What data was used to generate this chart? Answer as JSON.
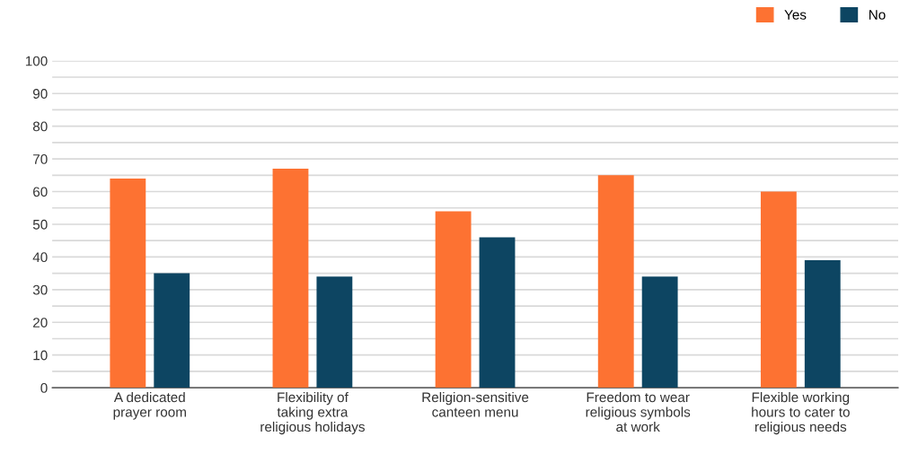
{
  "chart_data": {
    "type": "bar",
    "categories": [
      "A dedicated\nprayer room",
      "Flexibility of\ntaking extra\nreligious holidays",
      "Religion-sensitive\ncanteen menu",
      "Freedom to wear\nreligious symbols\nat work",
      "Flexible working\nhours to cater to\nreligious needs"
    ],
    "series": [
      {
        "name": "Yes",
        "color": "#fd7232",
        "values": [
          64,
          67,
          54,
          65,
          60
        ]
      },
      {
        "name": "No",
        "color": "#0d4562",
        "values": [
          35,
          34,
          46,
          34,
          39
        ]
      }
    ],
    "ylim": [
      0,
      100
    ],
    "yticks": [
      0,
      {
        "value": 5,
        "label": null
      },
      10,
      {
        "value": 15,
        "label": null
      },
      20,
      {
        "value": 25,
        "label": null
      },
      30,
      {
        "value": 35,
        "label": null
      },
      40,
      {
        "value": 45,
        "label": null
      },
      50,
      {
        "value": 55,
        "label": null
      },
      60,
      {
        "value": 65,
        "label": null
      },
      70,
      {
        "value": 75,
        "label": null
      },
      80,
      {
        "value": 85,
        "label": null
      },
      90,
      {
        "value": 95,
        "label": null
      },
      100
    ],
    "grid": "y",
    "legend": "top right"
  }
}
